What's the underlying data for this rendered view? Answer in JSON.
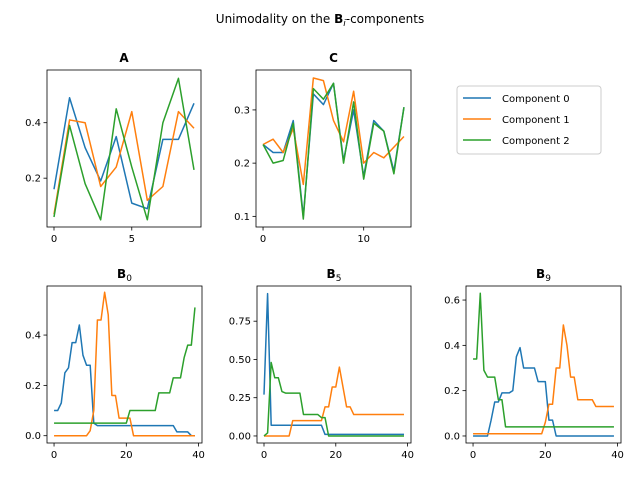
{
  "figure": {
    "suptitle": "Unimodality on the",
    "suptitle_bold": "B",
    "suptitle_sub": "i",
    "suptitle_tail": "-components"
  },
  "legend": {
    "entries": [
      "Component 0",
      "Component 1",
      "Component 2"
    ],
    "placement": "upper-right panel area"
  },
  "colors": {
    "component_0": "#1f77b4",
    "component_1": "#ff7f0e",
    "component_2": "#2ca02c"
  },
  "chart_data": [
    {
      "type": "line",
      "title": "A",
      "title_sub": "",
      "xlim": [
        -0.45,
        9.45
      ],
      "ylim": [
        0.024,
        0.59
      ],
      "xticks": [
        0,
        5
      ],
      "yticks": [
        0.2,
        0.4
      ],
      "x": [
        0,
        1,
        2,
        3,
        4,
        5,
        6,
        7,
        8,
        9
      ],
      "series": [
        {
          "name": "Component 0",
          "values": [
            0.16,
            0.49,
            0.31,
            0.19,
            0.35,
            0.11,
            0.09,
            0.34,
            0.34,
            0.47
          ]
        },
        {
          "name": "Component 1",
          "values": [
            0.07,
            0.41,
            0.4,
            0.17,
            0.24,
            0.44,
            0.12,
            0.17,
            0.44,
            0.38
          ]
        },
        {
          "name": "Component 2",
          "values": [
            0.06,
            0.39,
            0.18,
            0.05,
            0.45,
            0.24,
            0.05,
            0.4,
            0.56,
            0.23
          ]
        }
      ]
    },
    {
      "type": "line",
      "title": "C",
      "title_sub": "",
      "xlim": [
        -0.7,
        14.7
      ],
      "ylim": [
        0.08,
        0.375
      ],
      "xticks": [
        0,
        10
      ],
      "yticks": [
        0.1,
        0.2,
        0.3
      ],
      "x": [
        0,
        1,
        2,
        3,
        4,
        5,
        6,
        7,
        8,
        9,
        10,
        11,
        12,
        13,
        14
      ],
      "series": [
        {
          "name": "Component 0",
          "values": [
            0.235,
            0.22,
            0.22,
            0.28,
            0.1,
            0.33,
            0.31,
            0.35,
            0.205,
            0.3,
            0.175,
            0.28,
            0.26,
            0.185,
            0.305
          ]
        },
        {
          "name": "Component 1",
          "values": [
            0.235,
            0.245,
            0.22,
            0.265,
            0.16,
            0.36,
            0.355,
            0.28,
            0.24,
            0.335,
            0.2,
            0.22,
            0.21,
            0.23,
            0.25
          ]
        },
        {
          "name": "Component 2",
          "values": [
            0.235,
            0.2,
            0.205,
            0.275,
            0.095,
            0.34,
            0.32,
            0.35,
            0.2,
            0.315,
            0.17,
            0.275,
            0.26,
            0.18,
            0.305
          ]
        }
      ]
    },
    {
      "type": "line",
      "title": "B",
      "title_sub": "0",
      "xlim": [
        -1.95,
        40.95
      ],
      "ylim": [
        -0.029,
        0.595
      ],
      "xticks": [
        0,
        20,
        40
      ],
      "yticks": [
        0.0,
        0.2,
        0.4
      ],
      "x": [
        0,
        1,
        2,
        3,
        4,
        5,
        6,
        7,
        8,
        9,
        10,
        11,
        12,
        13,
        14,
        15,
        16,
        17,
        18,
        19,
        20,
        21,
        22,
        23,
        24,
        25,
        26,
        27,
        28,
        29,
        30,
        31,
        32,
        33,
        34,
        35,
        36,
        37,
        38,
        39
      ],
      "series": [
        {
          "name": "Component 0",
          "values": [
            0.1,
            0.1,
            0.13,
            0.25,
            0.27,
            0.37,
            0.37,
            0.44,
            0.32,
            0.28,
            0.28,
            0.05,
            0.04,
            0.04,
            0.04,
            0.04,
            0.04,
            0.04,
            0.04,
            0.04,
            0.04,
            0.04,
            0.04,
            0.04,
            0.04,
            0.04,
            0.04,
            0.04,
            0.04,
            0.04,
            0.04,
            0.04,
            0.04,
            0.04,
            0.015,
            0.015,
            0.015,
            0.015,
            0.0,
            0.0
          ]
        },
        {
          "name": "Component 1",
          "values": [
            0.0,
            0.0,
            0.0,
            0.0,
            0.0,
            0.0,
            0.0,
            0.0,
            0.0,
            0.0,
            0.02,
            0.1,
            0.46,
            0.46,
            0.57,
            0.48,
            0.16,
            0.16,
            0.07,
            0.07,
            0.07,
            0.07,
            0.0,
            0.0,
            0.0,
            0.0,
            0.0,
            0.0,
            0.0,
            0.0,
            0.0,
            0.0,
            0.0,
            0.0,
            0.0,
            0.0,
            0.0,
            0.0,
            0.0,
            0.0
          ]
        },
        {
          "name": "Component 2",
          "values": [
            0.05,
            0.05,
            0.05,
            0.05,
            0.05,
            0.05,
            0.05,
            0.05,
            0.05,
            0.05,
            0.05,
            0.05,
            0.05,
            0.05,
            0.05,
            0.05,
            0.05,
            0.05,
            0.05,
            0.05,
            0.05,
            0.1,
            0.1,
            0.1,
            0.1,
            0.1,
            0.1,
            0.1,
            0.1,
            0.17,
            0.17,
            0.17,
            0.17,
            0.23,
            0.23,
            0.23,
            0.31,
            0.36,
            0.36,
            0.51
          ]
        }
      ]
    },
    {
      "type": "line",
      "title": "B",
      "title_sub": "5",
      "xlim": [
        -1.95,
        40.95
      ],
      "ylim": [
        -0.046,
        0.98
      ],
      "xticks": [
        0,
        20,
        40
      ],
      "yticks": [
        0.0,
        0.25,
        0.5,
        0.75
      ],
      "x": [
        0,
        1,
        2,
        3,
        4,
        5,
        6,
        7,
        8,
        9,
        10,
        11,
        12,
        13,
        14,
        15,
        16,
        17,
        18,
        19,
        20,
        21,
        22,
        23,
        24,
        25,
        26,
        27,
        28,
        29,
        30,
        31,
        32,
        33,
        34,
        35,
        36,
        37,
        38,
        39
      ],
      "series": [
        {
          "name": "Component 0",
          "values": [
            0.27,
            0.93,
            0.07,
            0.07,
            0.07,
            0.07,
            0.07,
            0.07,
            0.07,
            0.07,
            0.07,
            0.07,
            0.07,
            0.07,
            0.07,
            0.07,
            0.07,
            0.01,
            0.01,
            0.01,
            0.01,
            0.01,
            0.01,
            0.01,
            0.01,
            0.01,
            0.01,
            0.01,
            0.01,
            0.01,
            0.01,
            0.01,
            0.01,
            0.01,
            0.01,
            0.01,
            0.01,
            0.01,
            0.01,
            0.01
          ]
        },
        {
          "name": "Component 1",
          "values": [
            0.0,
            0.0,
            0.0,
            0.0,
            0.0,
            0.0,
            0.0,
            0.0,
            0.1,
            0.1,
            0.1,
            0.1,
            0.1,
            0.1,
            0.1,
            0.1,
            0.1,
            0.19,
            0.19,
            0.32,
            0.32,
            0.45,
            0.32,
            0.19,
            0.19,
            0.14,
            0.14,
            0.14,
            0.14,
            0.14,
            0.14,
            0.14,
            0.14,
            0.14,
            0.14,
            0.14,
            0.14,
            0.14,
            0.14,
            0.14
          ]
        },
        {
          "name": "Component 2",
          "values": [
            0.0,
            0.02,
            0.48,
            0.38,
            0.38,
            0.29,
            0.28,
            0.28,
            0.28,
            0.28,
            0.28,
            0.14,
            0.14,
            0.14,
            0.14,
            0.14,
            0.12,
            0.12,
            0.0,
            0.0,
            0.0,
            0.0,
            0.0,
            0.0,
            0.0,
            0.0,
            0.0,
            0.0,
            0.0,
            0.0,
            0.0,
            0.0,
            0.0,
            0.0,
            0.0,
            0.0,
            0.0,
            0.0,
            0.0,
            0.0
          ]
        }
      ]
    },
    {
      "type": "line",
      "title": "B",
      "title_sub": "9",
      "xlim": [
        -1.95,
        40.95
      ],
      "ylim": [
        -0.031,
        0.662
      ],
      "xticks": [
        0,
        20,
        40
      ],
      "yticks": [
        0.0,
        0.2,
        0.4,
        0.6
      ],
      "x": [
        0,
        1,
        2,
        3,
        4,
        5,
        6,
        7,
        8,
        9,
        10,
        11,
        12,
        13,
        14,
        15,
        16,
        17,
        18,
        19,
        20,
        21,
        22,
        23,
        24,
        25,
        26,
        27,
        28,
        29,
        30,
        31,
        32,
        33,
        34,
        35,
        36,
        37,
        38,
        39
      ],
      "series": [
        {
          "name": "Component 0",
          "values": [
            0.0,
            0.0,
            0.0,
            0.0,
            0.0,
            0.07,
            0.15,
            0.15,
            0.19,
            0.19,
            0.19,
            0.2,
            0.35,
            0.39,
            0.3,
            0.3,
            0.3,
            0.3,
            0.24,
            0.24,
            0.24,
            0.07,
            0.07,
            0.0,
            0.0,
            0.0,
            0.0,
            0.0,
            0.0,
            0.0,
            0.0,
            0.0,
            0.0,
            0.0,
            0.0,
            0.0,
            0.0,
            0.0,
            0.0,
            0.0
          ]
        },
        {
          "name": "Component 1",
          "values": [
            0.01,
            0.01,
            0.01,
            0.01,
            0.01,
            0.01,
            0.01,
            0.01,
            0.01,
            0.01,
            0.01,
            0.01,
            0.01,
            0.01,
            0.01,
            0.01,
            0.01,
            0.01,
            0.01,
            0.01,
            0.06,
            0.14,
            0.14,
            0.3,
            0.3,
            0.49,
            0.4,
            0.26,
            0.26,
            0.16,
            0.16,
            0.16,
            0.16,
            0.16,
            0.13,
            0.13,
            0.13,
            0.13,
            0.13,
            0.13
          ]
        },
        {
          "name": "Component 2",
          "values": [
            0.34,
            0.34,
            0.63,
            0.29,
            0.26,
            0.26,
            0.26,
            0.16,
            0.16,
            0.04,
            0.04,
            0.04,
            0.04,
            0.04,
            0.04,
            0.04,
            0.04,
            0.04,
            0.04,
            0.04,
            0.04,
            0.04,
            0.04,
            0.04,
            0.04,
            0.04,
            0.04,
            0.04,
            0.04,
            0.04,
            0.04,
            0.04,
            0.04,
            0.04,
            0.04,
            0.04,
            0.04,
            0.04,
            0.04,
            0.04
          ]
        }
      ]
    }
  ]
}
